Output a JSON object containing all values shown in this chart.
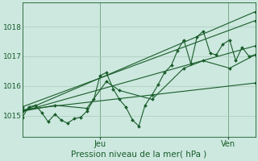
{
  "background_color": "#cce8df",
  "grid_color": "#aaccbb",
  "line_color": "#1a5c2a",
  "title": "Pression niveau de la mer( hPa )",
  "xlabel_jeu": "Jeu",
  "xlabel_ven": "Ven",
  "ylim": [
    1014.3,
    1018.8
  ],
  "yticks": [
    1015,
    1016,
    1017,
    1018
  ],
  "xlim": [
    0.0,
    3.0
  ],
  "jeu_x": 1.0,
  "ven_x": 2.65,
  "series0_x": [
    0.0,
    0.08,
    0.17,
    0.25,
    0.33,
    0.42,
    0.5,
    0.58,
    0.67,
    0.75,
    0.83,
    0.92,
    1.0,
    1.08,
    1.17,
    1.25,
    1.33,
    1.42,
    1.5,
    1.58,
    1.67,
    1.75,
    1.83,
    1.92,
    2.0,
    2.08,
    2.17,
    2.25,
    2.33,
    2.42,
    2.5,
    2.58,
    2.67,
    2.75,
    2.83,
    2.92,
    3.0
  ],
  "series0_y": [
    1014.95,
    1015.3,
    1015.35,
    1015.1,
    1014.8,
    1015.05,
    1014.85,
    1014.75,
    1014.9,
    1014.95,
    1015.15,
    1015.55,
    1016.35,
    1016.45,
    1015.9,
    1015.55,
    1015.3,
    1014.85,
    1014.65,
    1015.35,
    1015.7,
    1016.05,
    1016.45,
    1016.7,
    1017.2,
    1017.55,
    1016.75,
    1017.65,
    1017.85,
    1017.1,
    1017.05,
    1017.4,
    1017.55,
    1016.85,
    1017.3,
    1017.0,
    1017.05
  ],
  "series1_x": [
    0.0,
    0.42,
    0.83,
    1.08,
    1.25,
    1.67,
    2.08,
    2.33,
    2.67,
    3.0
  ],
  "series1_y": [
    1015.15,
    1015.35,
    1015.25,
    1016.15,
    1015.85,
    1015.55,
    1016.6,
    1016.85,
    1016.6,
    1017.05
  ],
  "straight_lines": [
    [
      [
        0.0,
        3.0
      ],
      [
        1015.15,
        1017.35
      ]
    ],
    [
      [
        0.0,
        3.0
      ],
      [
        1015.2,
        1016.1
      ]
    ],
    [
      [
        0.0,
        3.0
      ],
      [
        1015.3,
        1018.2
      ]
    ],
    [
      [
        0.0,
        3.0
      ],
      [
        1015.15,
        1018.5
      ]
    ]
  ],
  "figsize": [
    3.2,
    2.0
  ],
  "dpi": 100
}
